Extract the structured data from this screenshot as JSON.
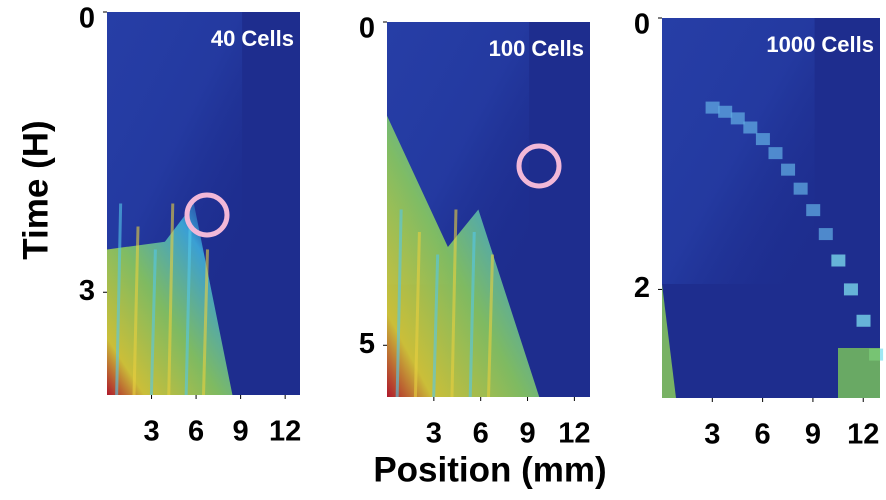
{
  "figure": {
    "xlabel": "Position (mm)",
    "ylabel": "Time (H)"
  },
  "chart_data": [
    {
      "type": "heatmap",
      "title": "40 Cells",
      "xlim": [
        0,
        13
      ],
      "xticks": [
        3,
        6,
        9,
        12
      ],
      "ylim": [
        0,
        4.1
      ],
      "yticks": [
        0,
        3
      ]
    },
    {
      "type": "heatmap",
      "title": "100 Cells",
      "xlim": [
        0,
        13
      ],
      "xticks": [
        3,
        6,
        9,
        12
      ],
      "ylim": [
        0,
        5.8
      ],
      "yticks": [
        0,
        5
      ]
    },
    {
      "type": "heatmap",
      "title": "1000 Cells",
      "xlim": [
        0,
        13
      ],
      "xticks": [
        3,
        6,
        9,
        12
      ],
      "ylim": [
        0,
        2.8
      ],
      "yticks": [
        0,
        2
      ]
    }
  ]
}
